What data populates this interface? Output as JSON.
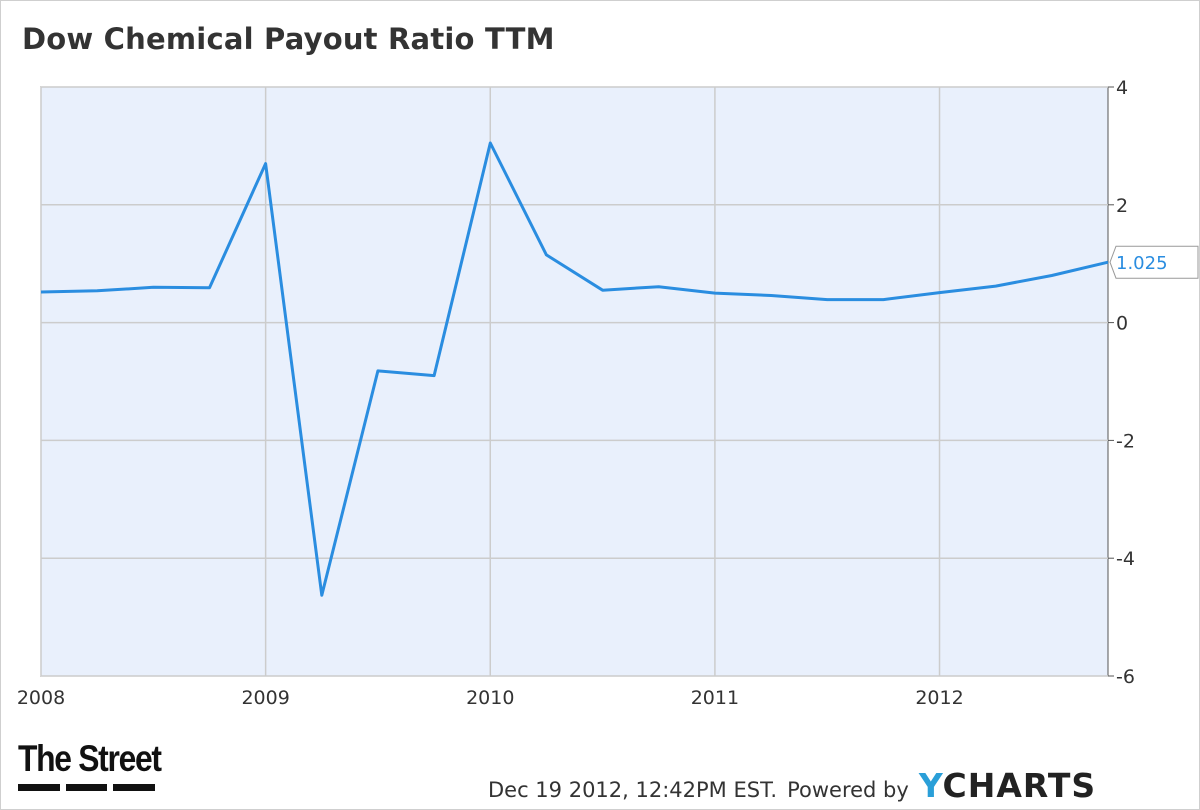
{
  "title": "Dow Chemical Payout Ratio TTM",
  "footer": {
    "timestamp": "Dec 19 2012, 12:42PM EST.",
    "powered_by": "Powered by",
    "brand_y": "Y",
    "brand_rest": "CHARTS"
  },
  "logo": {
    "text": "The Street"
  },
  "colors": {
    "line": "#2a8de0",
    "plot_bg": "#e9f0fc",
    "grid": "#cccccc",
    "callout_text": "#2a8de0"
  },
  "chart_data": {
    "type": "line",
    "title": "Dow Chemical Payout Ratio TTM",
    "xlabel": "",
    "ylabel": "",
    "x_ticks": [
      "2008",
      "2009",
      "2010",
      "2011",
      "2012"
    ],
    "y_ticks": [
      4,
      2,
      0,
      -2,
      -4,
      -6
    ],
    "xlim": [
      2008.0,
      2012.75
    ],
    "ylim": [
      -6,
      4
    ],
    "grid": true,
    "y_axis_side": "right",
    "last_value_label": "1.025",
    "series": [
      {
        "x": [
          2008.0,
          2008.25,
          2008.5,
          2008.75,
          2009.0,
          2009.25,
          2009.5,
          2009.75,
          2010.0,
          2010.25,
          2010.5,
          2010.75,
          2011.0,
          2011.25,
          2011.5,
          2011.75,
          2012.0,
          2012.25,
          2012.5,
          2012.75
        ],
        "y": [
          0.52,
          0.54,
          0.6,
          0.59,
          2.7,
          -4.63,
          -0.82,
          -0.9,
          3.05,
          1.15,
          0.55,
          0.61,
          0.5,
          0.46,
          0.39,
          0.39,
          0.51,
          0.62,
          0.8,
          1.025
        ]
      }
    ]
  }
}
